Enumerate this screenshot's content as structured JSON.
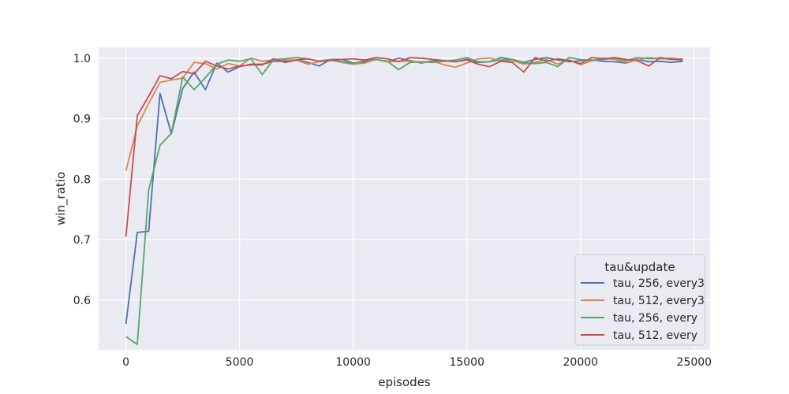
{
  "chart_data": {
    "type": "line",
    "xlabel": "episodes",
    "ylabel": "win_ratio",
    "xlim": [
      -1200,
      25700
    ],
    "ylim": [
      0.518,
      1.018
    ],
    "xticks": [
      0,
      5000,
      10000,
      15000,
      20000,
      25000
    ],
    "yticks": [
      0.6,
      0.7,
      0.8,
      0.9,
      1.0
    ],
    "xtick_labels": [
      "0",
      "5000",
      "10000",
      "15000",
      "20000",
      "25000"
    ],
    "ytick_labels": [
      "0.6",
      "0.7",
      "0.8",
      "0.9",
      "1.0"
    ],
    "grid": true,
    "background": "#eaeaf2",
    "legend_title": "tau&update",
    "legend_position": "lower-right",
    "x": [
      0,
      500,
      1000,
      1500,
      2000,
      2500,
      3000,
      3500,
      4000,
      4500,
      5000,
      5500,
      6000,
      6500,
      7000,
      7500,
      8000,
      8500,
      9000,
      9500,
      10000,
      10500,
      11000,
      11500,
      12000,
      12500,
      13000,
      13500,
      14000,
      14500,
      15000,
      15500,
      16000,
      16500,
      17000,
      17500,
      18000,
      18500,
      19000,
      19500,
      20000,
      20500,
      21000,
      21500,
      22000,
      22500,
      23000,
      23500,
      24000,
      24500
    ],
    "series": [
      {
        "name": "tau, 256, every3",
        "color": "#4c72b0",
        "values": [
          0.561,
          0.712,
          0.714,
          0.942,
          0.875,
          0.95,
          0.977,
          0.948,
          0.992,
          0.977,
          0.986,
          0.99,
          0.99,
          0.995,
          0.995,
          0.997,
          0.993,
          0.987,
          0.998,
          0.998,
          0.992,
          0.994,
          0.998,
          0.994,
          1.0,
          0.996,
          0.992,
          0.996,
          0.996,
          0.994,
          0.998,
          0.993,
          0.994,
          1.001,
          0.998,
          0.993,
          0.998,
          1.001,
          0.997,
          0.994,
          0.996,
          0.997,
          0.995,
          0.994,
          0.992,
          0.998,
          0.994,
          0.995,
          0.993,
          0.995
        ]
      },
      {
        "name": "tau, 512, every3",
        "color": "#dd8452",
        "values": [
          0.814,
          0.888,
          0.925,
          0.96,
          0.964,
          0.967,
          0.993,
          0.991,
          0.982,
          0.991,
          0.987,
          1.0,
          0.995,
          0.997,
          0.997,
          0.997,
          0.99,
          0.994,
          0.997,
          0.993,
          0.99,
          0.992,
          0.998,
          0.994,
          0.995,
          0.995,
          0.993,
          0.995,
          0.989,
          0.985,
          0.992,
          0.999,
          1.0,
          0.996,
          0.996,
          0.99,
          0.993,
          0.998,
          0.99,
          0.997,
          0.989,
          0.996,
          1.0,
          0.998,
          0.993,
          0.997,
          1.001,
          0.999,
          1.0,
          0.998
        ]
      },
      {
        "name": "tau, 256, every",
        "color": "#55a868",
        "values": [
          0.54,
          0.527,
          0.782,
          0.856,
          0.876,
          0.969,
          0.948,
          0.968,
          0.99,
          0.997,
          0.995,
          0.999,
          0.973,
          0.998,
          0.999,
          1.001,
          0.999,
          0.995,
          0.998,
          0.994,
          0.991,
          0.996,
          0.998,
          0.995,
          0.981,
          0.993,
          0.994,
          0.993,
          0.995,
          0.997,
          1.001,
          0.994,
          0.994,
          0.997,
          0.998,
          0.992,
          0.991,
          0.993,
          0.986,
          1.001,
          0.998,
          0.996,
          0.998,
          1.0,
          0.996,
          1.001,
          0.999,
          1.0,
          0.998,
          0.999
        ]
      },
      {
        "name": "tau, 512, every",
        "color": "#c44e52",
        "values": [
          0.705,
          0.905,
          0.937,
          0.971,
          0.966,
          0.978,
          0.974,
          0.995,
          0.987,
          0.982,
          0.987,
          0.989,
          0.989,
          0.999,
          0.993,
          0.997,
          0.999,
          0.995,
          0.996,
          0.998,
          0.999,
          0.997,
          1.001,
          0.999,
          0.994,
          1.001,
          1.0,
          0.998,
          0.996,
          0.994,
          0.997,
          0.99,
          0.986,
          0.995,
          0.993,
          0.977,
          1.001,
          0.995,
          0.999,
          0.996,
          0.991,
          1.001,
          0.999,
          1.001,
          0.998,
          0.996,
          0.987,
          1.001,
          0.998,
          0.997
        ]
      }
    ]
  }
}
